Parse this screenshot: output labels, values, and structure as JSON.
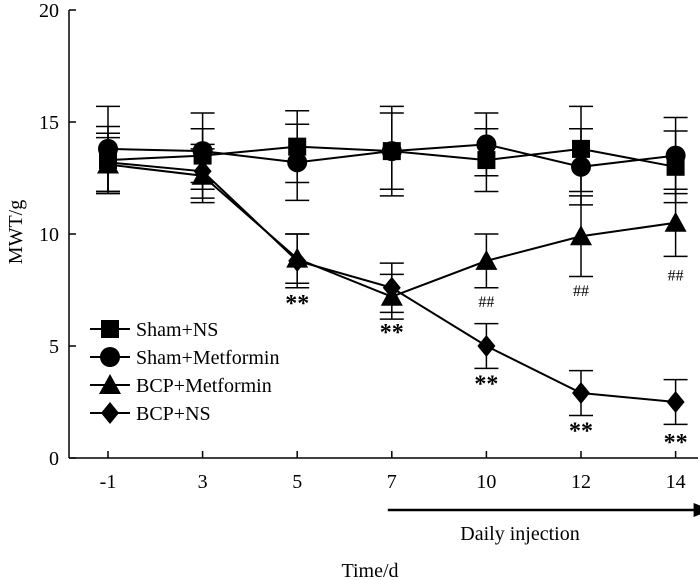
{
  "chart_data": {
    "type": "line",
    "title": "",
    "xlabel": "Time/d",
    "ylabel": "MWT/g",
    "categories": [
      "-1",
      "3",
      "5",
      "7",
      "10",
      "12",
      "14"
    ],
    "ylim": [
      0,
      20
    ],
    "yticks": [
      0,
      5,
      10,
      15,
      20
    ],
    "grid": false,
    "legend_position": "lower-left",
    "series": [
      {
        "name": "Sham+NS",
        "marker": "square",
        "values": [
          13.3,
          13.5,
          13.9,
          13.7,
          13.3,
          13.8,
          13.0
        ],
        "errors": [
          1.5,
          1.2,
          1.6,
          2.0,
          1.4,
          1.9,
          1.6
        ]
      },
      {
        "name": "Sham+Metformin",
        "marker": "circle",
        "values": [
          13.8,
          13.7,
          13.2,
          13.7,
          14.0,
          13.0,
          13.5
        ],
        "errors": [
          1.9,
          1.7,
          1.7,
          1.7,
          1.4,
          1.7,
          1.7
        ]
      },
      {
        "name": "BCP+Metformin",
        "marker": "triangle",
        "values": [
          13.1,
          12.6,
          8.9,
          7.2,
          8.8,
          9.9,
          10.5
        ],
        "errors": [
          1.2,
          1.2,
          1.1,
          1.0,
          1.2,
          1.8,
          1.5
        ]
      },
      {
        "name": "BCP+NS",
        "marker": "diamond",
        "values": [
          13.2,
          12.8,
          8.8,
          7.6,
          5.0,
          2.9,
          2.5
        ],
        "errors": [
          1.3,
          1.2,
          1.2,
          1.1,
          1.0,
          1.0,
          1.0
        ]
      }
    ],
    "annotations": [
      {
        "x": "5",
        "y": 7.1,
        "text": "**"
      },
      {
        "x": "7",
        "y": 5.8,
        "text": "**"
      },
      {
        "x": "10",
        "y": 3.5,
        "text": "**"
      },
      {
        "x": "12",
        "y": 1.4,
        "text": "**"
      },
      {
        "x": "14",
        "y": 0.9,
        "text": "**"
      },
      {
        "x": "10",
        "y": 7.0,
        "text": "##"
      },
      {
        "x": "12",
        "y": 7.5,
        "text": "##"
      },
      {
        "x": "14",
        "y": 8.2,
        "text": "##"
      }
    ],
    "arrow_label": "Daily injection",
    "arrow_from": "7",
    "arrow_to": "14"
  }
}
